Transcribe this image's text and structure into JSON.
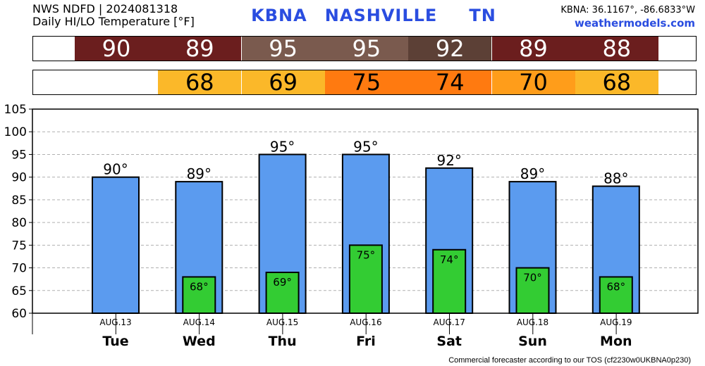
{
  "header": {
    "source_line": "NWS NDFD | 2024081318",
    "subtitle": "Daily HI/LO Temperature [°F]",
    "station_code": "KBNA",
    "station_name": "NASHVILLE",
    "state": "TN",
    "coords": "KBNA: 36.1167°, -86.6833°W",
    "site": "weathermodels.com"
  },
  "footer": "Commercial forecaster according to our TOS (cf2230w0UKBNA0p230)",
  "colors": {
    "high_bar": "#5b9bef",
    "low_bar": "#33cc33",
    "title_blue": "#2a4de0"
  },
  "hi_strip": [
    {
      "value": "90",
      "bg": "#6b1e1e",
      "fg": "#ffffff"
    },
    {
      "value": "89",
      "bg": "#6b1e1e",
      "fg": "#ffffff"
    },
    {
      "value": "95",
      "bg": "#7a5a4e",
      "fg": "#ffffff"
    },
    {
      "value": "95",
      "bg": "#7a5a4e",
      "fg": "#ffffff"
    },
    {
      "value": "92",
      "bg": "#5c4036",
      "fg": "#ffffff"
    },
    {
      "value": "89",
      "bg": "#6b1e1e",
      "fg": "#ffffff"
    },
    {
      "value": "88",
      "bg": "#6b1e1e",
      "fg": "#ffffff"
    }
  ],
  "lo_strip": [
    {
      "value": "",
      "bg": "#ffffff",
      "fg": "#000000"
    },
    {
      "value": "68",
      "bg": "#fbb829",
      "fg": "#000000"
    },
    {
      "value": "69",
      "bg": "#fbb829",
      "fg": "#000000"
    },
    {
      "value": "75",
      "bg": "#ff7a10",
      "fg": "#000000"
    },
    {
      "value": "74",
      "bg": "#ff7a10",
      "fg": "#000000"
    },
    {
      "value": "70",
      "bg": "#ff9d1a",
      "fg": "#000000"
    },
    {
      "value": "68",
      "bg": "#fbb829",
      "fg": "#000000"
    }
  ],
  "chart_data": {
    "type": "bar",
    "categories": [
      "AUG.13",
      "AUG.14",
      "AUG.15",
      "AUG.16",
      "AUG.17",
      "AUG.18",
      "AUG.19"
    ],
    "day_names": [
      "Tue",
      "Wed",
      "Thu",
      "Fri",
      "Sat",
      "Sun",
      "Mon"
    ],
    "series": [
      {
        "name": "HI",
        "values": [
          90,
          89,
          95,
          95,
          92,
          89,
          88
        ],
        "labels": [
          "90°",
          "89°",
          "95°",
          "95°",
          "92°",
          "89°",
          "88°"
        ]
      },
      {
        "name": "LO",
        "values": [
          null,
          68,
          69,
          75,
          74,
          70,
          68
        ],
        "labels": [
          "",
          "68°",
          "69°",
          "75°",
          "74°",
          "70°",
          "68°"
        ]
      }
    ],
    "ylim": [
      60,
      105
    ],
    "yticks": [
      60,
      65,
      70,
      75,
      80,
      85,
      90,
      95,
      100,
      105
    ],
    "ytick_labels": [
      "60",
      "65",
      "70",
      "75",
      "80",
      "85",
      "90",
      "95",
      "100",
      "105"
    ],
    "grid": true
  }
}
